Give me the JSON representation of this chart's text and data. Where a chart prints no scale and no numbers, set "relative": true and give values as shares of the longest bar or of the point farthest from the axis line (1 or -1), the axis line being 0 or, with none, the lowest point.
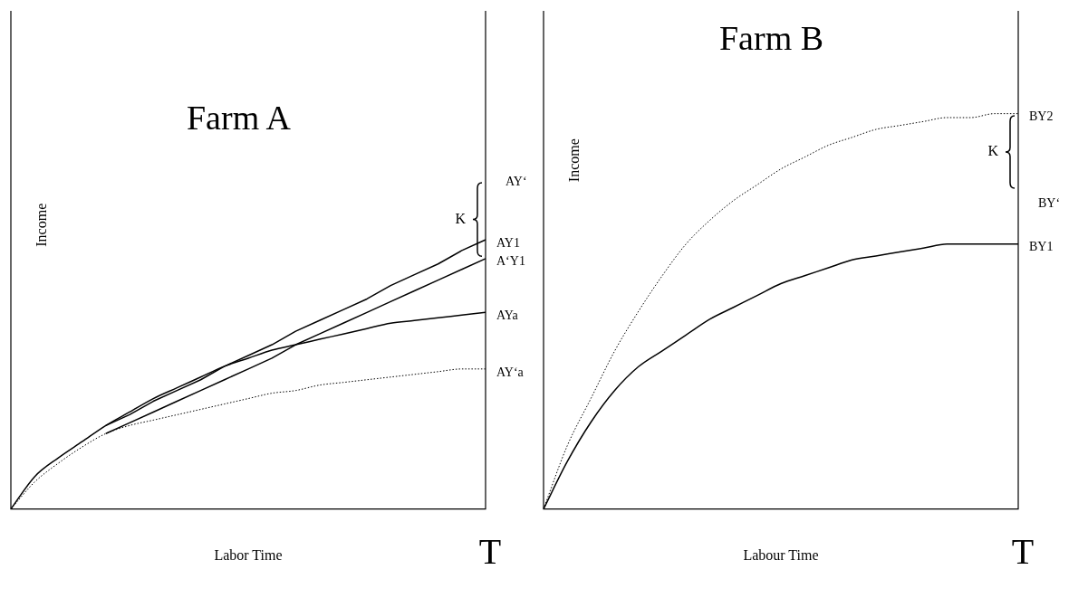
{
  "chart_data": [
    {
      "type": "line",
      "title": "Farm A",
      "xlabel": "Labor Time",
      "ylabel": "Income",
      "relative": true,
      "legend": false,
      "categories": [
        null,
        null,
        null,
        null,
        null,
        null,
        null,
        null,
        null,
        null,
        null,
        null,
        null,
        null,
        null,
        null,
        null,
        null,
        null,
        null,
        null
      ],
      "series": [
        {
          "name": "AY1",
          "color": "#000000",
          "line_style": "solid",
          "values": [
            null,
            null,
            null,
            null,
            0.31,
            0.35,
            0.4,
            0.44,
            0.48,
            0.53,
            0.57,
            0.61,
            0.66,
            0.7,
            0.74,
            0.78,
            0.83,
            0.87,
            0.91,
            0.96,
            1.0
          ]
        },
        {
          "name": "A‘Y1",
          "color": "#000000",
          "line_style": "solid",
          "values": [
            null,
            null,
            null,
            null,
            0.28,
            0.32,
            0.36,
            0.4,
            0.44,
            0.48,
            0.52,
            0.56,
            0.61,
            0.65,
            0.69,
            0.73,
            0.77,
            0.81,
            0.85,
            0.89,
            0.93
          ]
        },
        {
          "name": "AYa",
          "color": "#000000",
          "line_style": "solid",
          "values": [
            0,
            0.12,
            0.19,
            0.25,
            0.31,
            0.36,
            0.41,
            0.45,
            0.49,
            0.53,
            0.56,
            0.59,
            0.61,
            0.63,
            0.65,
            0.67,
            0.69,
            0.7,
            0.71,
            0.72,
            0.73
          ]
        },
        {
          "name": "AY‘a",
          "color": "#000000",
          "line_style": "dotted",
          "values": [
            0,
            0.1,
            0.17,
            0.23,
            0.28,
            0.31,
            0.33,
            0.35,
            0.37,
            0.39,
            0.41,
            0.43,
            0.44,
            0.46,
            0.47,
            0.48,
            0.49,
            0.5,
            0.51,
            0.52,
            0.52
          ]
        }
      ],
      "annotations": [
        "AY‘",
        "K",
        "T"
      ]
    },
    {
      "type": "line",
      "title": "Farm B",
      "xlabel": "Labour Time",
      "ylabel": "Income",
      "relative": true,
      "legend": false,
      "categories": [
        null,
        null,
        null,
        null,
        null,
        null,
        null,
        null,
        null,
        null,
        null,
        null,
        null,
        null,
        null,
        null,
        null,
        null,
        null,
        null,
        null
      ],
      "series": [
        {
          "name": "BY2",
          "color": "#000000",
          "line_style": "dotted",
          "values": [
            0,
            0.16,
            0.28,
            0.4,
            0.5,
            0.59,
            0.67,
            0.73,
            0.78,
            0.82,
            0.86,
            0.89,
            0.92,
            0.94,
            0.96,
            0.97,
            0.98,
            0.99,
            0.99,
            1.0,
            1.0
          ]
        },
        {
          "name": "BY1",
          "color": "#000000",
          "line_style": "solid",
          "values": [
            0,
            0.12,
            0.22,
            0.3,
            0.36,
            0.4,
            0.44,
            0.48,
            0.51,
            0.54,
            0.57,
            0.59,
            0.61,
            0.63,
            0.64,
            0.65,
            0.66,
            0.67,
            0.67,
            0.67,
            0.67
          ]
        }
      ],
      "annotations": [
        "BY‘",
        "K",
        "T"
      ]
    }
  ]
}
